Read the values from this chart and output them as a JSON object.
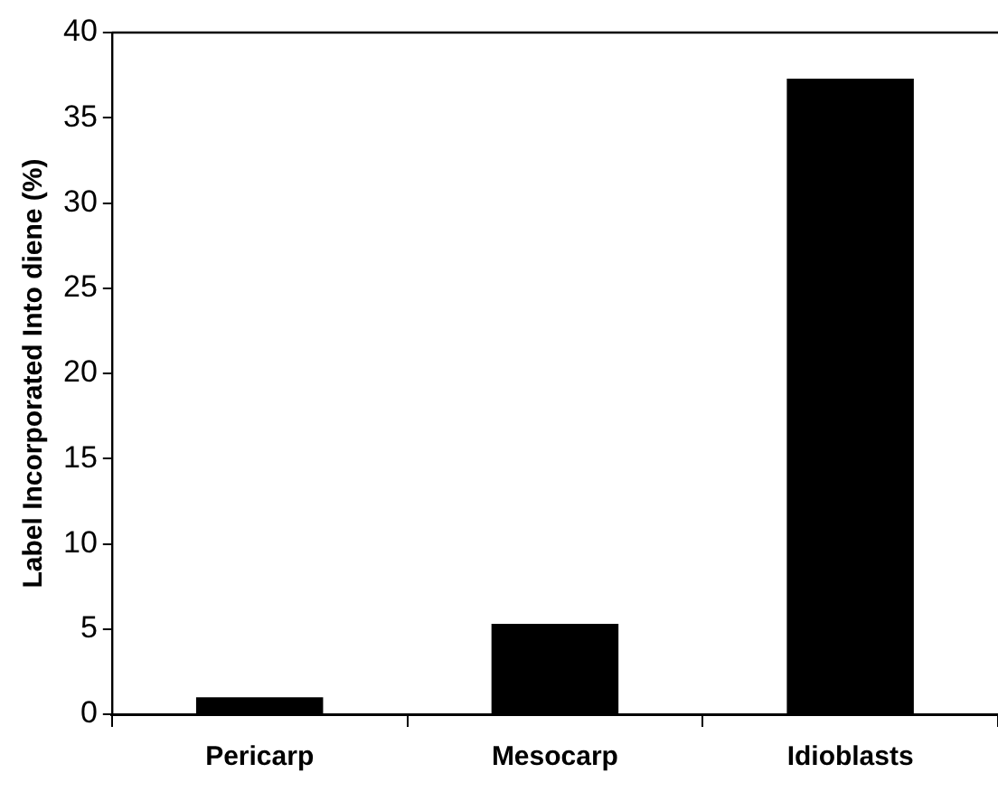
{
  "chart_data": {
    "type": "bar",
    "ylabel": "Label Incorporated Into diene (%)",
    "categories": [
      "Pericarp",
      "Mesocarp",
      "Idioblasts"
    ],
    "values": [
      1.0,
      5.3,
      37.3
    ],
    "color": "#000000",
    "ylim": [
      0,
      40
    ],
    "yticks": [
      0,
      5,
      10,
      15,
      20,
      25,
      30,
      35,
      40
    ],
    "grid": false,
    "legend": false
  }
}
